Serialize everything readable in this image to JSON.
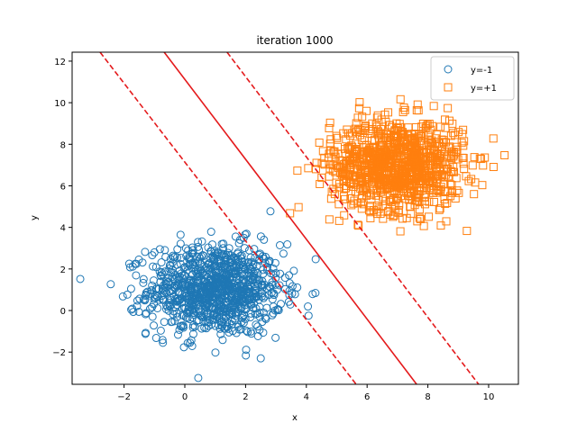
{
  "chart_data": {
    "type": "scatter",
    "title": "iteration 1000",
    "xlabel": "x",
    "ylabel": "y",
    "xlim": [
      -3.71,
      10.98
    ],
    "ylim": [
      -3.55,
      12.43
    ],
    "xticks": [
      -2,
      0,
      2,
      4,
      6,
      8,
      10
    ],
    "xtick_labels": [
      "−2",
      "0",
      "2",
      "4",
      "6",
      "8",
      "10"
    ],
    "yticks": [
      -2,
      0,
      2,
      4,
      6,
      8,
      10,
      12
    ],
    "ytick_labels": [
      "−2",
      "0",
      "2",
      "4",
      "6",
      "8",
      "10",
      "12"
    ],
    "grid": false,
    "legend_position": "top-right",
    "series": [
      {
        "name": "y=-1",
        "marker": "circle",
        "color": "#1f77b4",
        "center": [
          1,
          1
        ],
        "std": 1.1,
        "count": 1000
      },
      {
        "name": "y=+1",
        "marker": "square",
        "color": "#ff7f0e",
        "center": [
          7,
          7
        ],
        "std": 1.1,
        "count": 1000
      }
    ],
    "lines": [
      {
        "name": "decision-boundary",
        "style": "solid",
        "color": "#e41a1c",
        "points": [
          [
            -0.68,
            12.43
          ],
          [
            7.63,
            -3.55
          ]
        ]
      },
      {
        "name": "margin-minus",
        "style": "dashed",
        "color": "#e41a1c",
        "points": [
          [
            -2.79,
            12.43
          ],
          [
            5.64,
            -3.55
          ]
        ]
      },
      {
        "name": "margin-plus",
        "style": "dashed",
        "color": "#e41a1c",
        "points": [
          [
            1.39,
            12.43
          ],
          [
            9.67,
            -3.55
          ]
        ]
      }
    ]
  }
}
